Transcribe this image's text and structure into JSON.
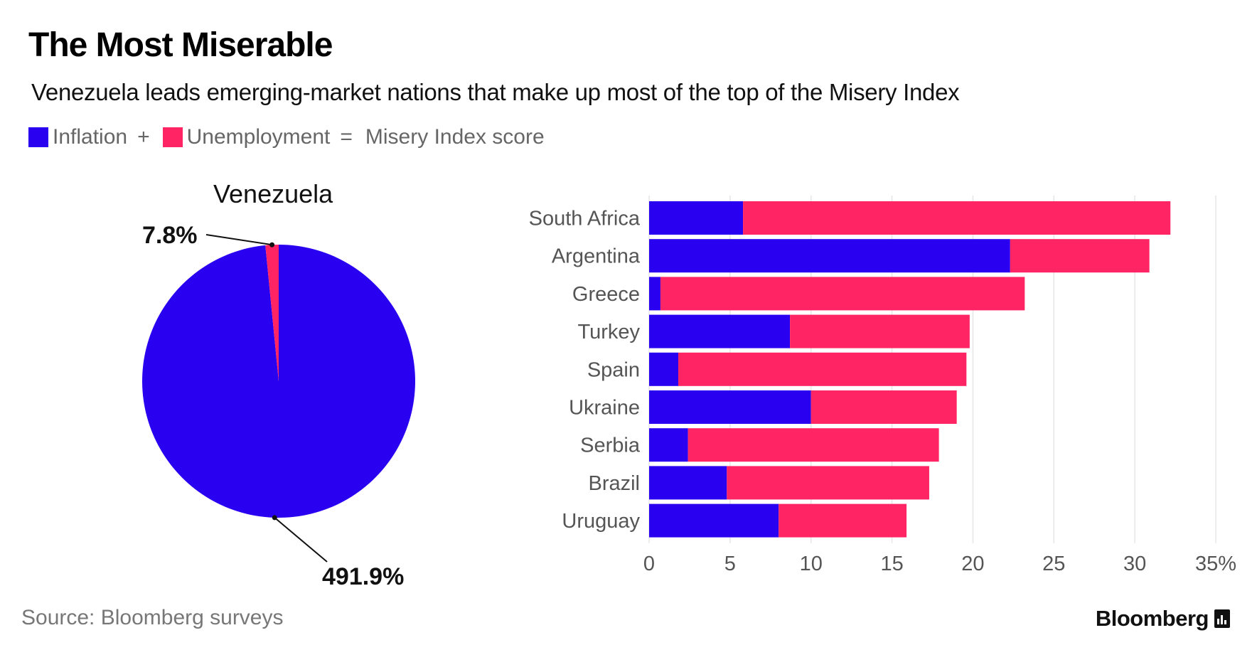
{
  "title": "The Most Miserable",
  "subtitle": "Venezuela leads emerging-market nations that make up most of the top of the Misery Index",
  "legend": {
    "inflation_label": "Inflation",
    "plus": "+",
    "unemployment_label": "Unemployment",
    "equals": "=",
    "score_label": "Misery Index score"
  },
  "colors": {
    "inflation": "#2a00f0",
    "unemployment": "#ff2464",
    "grid": "#e6e6e6",
    "text": "#555555"
  },
  "source": "Source: Bloomberg surveys",
  "brand": "Bloomberg",
  "chart_data": [
    {
      "type": "pie",
      "title": "Venezuela",
      "slices": [
        {
          "name": "Inflation",
          "value": 491.9,
          "label": "491.9%"
        },
        {
          "name": "Unemployment",
          "value": 7.8,
          "label": "7.8%"
        }
      ]
    },
    {
      "type": "bar",
      "orientation": "horizontal",
      "stacked": true,
      "categories": [
        "South Africa",
        "Argentina",
        "Greece",
        "Turkey",
        "Spain",
        "Ukraine",
        "Serbia",
        "Brazil",
        "Uruguay"
      ],
      "series": [
        {
          "name": "Inflation",
          "values": [
            5.8,
            22.3,
            0.7,
            8.7,
            1.8,
            10.0,
            2.4,
            4.8,
            8.0
          ]
        },
        {
          "name": "Unemployment",
          "values": [
            26.4,
            8.6,
            22.5,
            11.1,
            17.8,
            9.0,
            15.5,
            12.5,
            7.9
          ]
        }
      ],
      "xlim": [
        0,
        35
      ],
      "xticks": [
        "0",
        "5",
        "10",
        "15",
        "20",
        "25",
        "30",
        "35%"
      ],
      "grid": true
    }
  ]
}
